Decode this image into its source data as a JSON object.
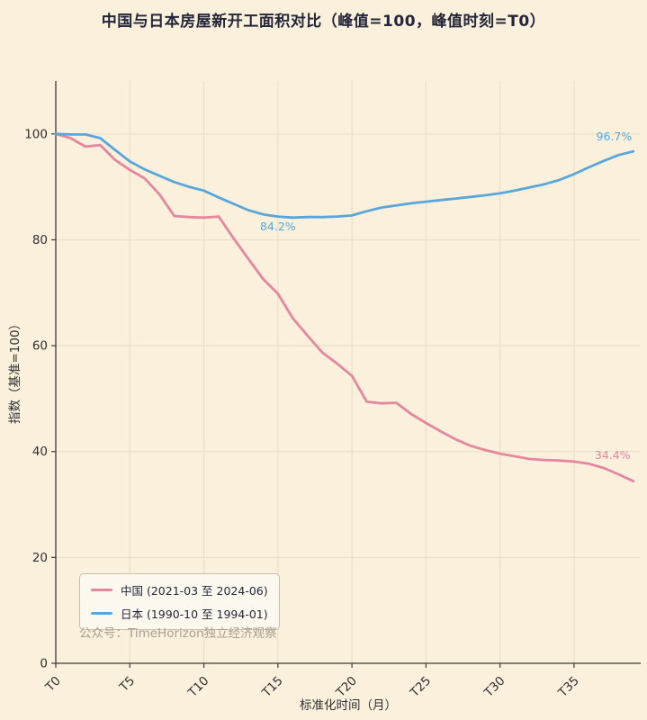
{
  "title": "中国与日本房屋新开工面积对比（峰值=100，峰值时刻=T0）",
  "watermark": "公众号：TimeHorizon独立经济观察",
  "colors": {
    "background": "#faf0dc",
    "grid": "#e7dcc4",
    "axis": "#3b3b3b",
    "tick_text": "#2e2e2e",
    "title": "#23263a",
    "china_line": "#e5879f",
    "japan_line": "#58a6dc",
    "watermark": "#a79f8e"
  },
  "chart_data": {
    "type": "line",
    "title": "中国与日本房屋新开工面积对比（峰值=100，峰值时刻=T0）",
    "xlabel": "标准化时间（月）",
    "ylabel": "指数（基准=100）",
    "xlim": [
      0,
      39.5
    ],
    "ylim": [
      0,
      110
    ],
    "grid": true,
    "legend_position": "lower-left",
    "x_tick_positions": [
      0,
      5,
      10,
      15,
      20,
      25,
      30,
      35
    ],
    "x_tick_labels": [
      "T0",
      "T5",
      "T10",
      "T15",
      "T20",
      "T25",
      "T30",
      "T35"
    ],
    "y_ticks": [
      0,
      20,
      40,
      60,
      80,
      100
    ],
    "x": [
      0,
      1,
      2,
      3,
      4,
      5,
      6,
      7,
      8,
      9,
      10,
      11,
      12,
      13,
      14,
      15,
      16,
      17,
      18,
      19,
      20,
      21,
      22,
      23,
      24,
      25,
      26,
      27,
      28,
      29,
      30,
      31,
      32,
      33,
      34,
      35,
      36,
      37,
      38,
      39
    ],
    "series": [
      {
        "name": "中国 (2021-03 至 2024-06)",
        "color": "#e5879f",
        "values": [
          100,
          99.2,
          97.6,
          97.9,
          95.1,
          93.2,
          91.6,
          88.6,
          84.5,
          84.3,
          84.2,
          84.4,
          80.3,
          76.4,
          72.6,
          69.8,
          65.2,
          61.9,
          58.7,
          56.6,
          54.3,
          49.4,
          49.1,
          49.2,
          47.1,
          45.4,
          43.8,
          42.3,
          41.1,
          40.3,
          39.6,
          39.1,
          38.6,
          38.4,
          38.3,
          38.1,
          37.7,
          36.9,
          35.7,
          34.4
        ]
      },
      {
        "name": "日本 (1990-10 至 1994-01)",
        "color": "#58a6dc",
        "values": [
          100,
          99.9,
          99.9,
          99.2,
          97.0,
          94.8,
          93.3,
          92.1,
          90.9,
          90.0,
          89.3,
          88.0,
          86.8,
          85.6,
          84.8,
          84.4,
          84.2,
          84.3,
          84.3,
          84.4,
          84.6,
          85.4,
          86.1,
          86.5,
          86.9,
          87.2,
          87.5,
          87.8,
          88.1,
          88.4,
          88.8,
          89.3,
          89.9,
          90.5,
          91.3,
          92.4,
          93.7,
          94.9,
          96.0,
          96.7
        ]
      }
    ],
    "annotations": [
      {
        "text": "84.2%",
        "x": 15.0,
        "y": 81.8,
        "color": "#58a6dc",
        "anchor": "middle"
      },
      {
        "text": "96.7%",
        "x": 37.7,
        "y": 98.8,
        "color": "#58a6dc",
        "anchor": "middle"
      },
      {
        "text": "34.4%",
        "x": 37.6,
        "y": 38.6,
        "color": "#e5879f",
        "anchor": "middle"
      }
    ]
  }
}
